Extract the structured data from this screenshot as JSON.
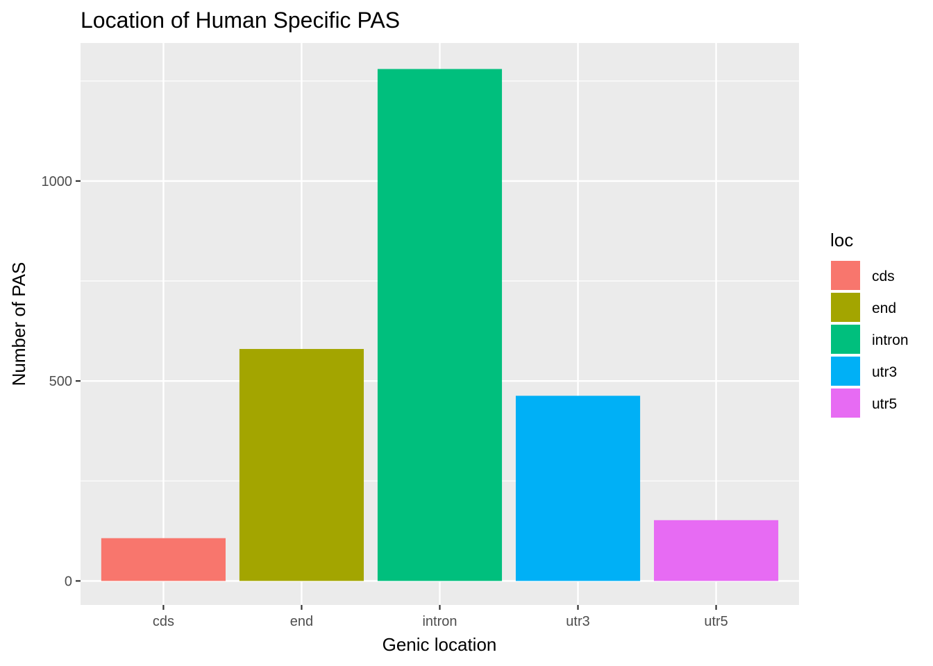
{
  "chart_data": {
    "type": "bar",
    "title": "Location of Human Specific PAS",
    "xlabel": "Genic location",
    "ylabel": "Number of PAS",
    "categories": [
      "cds",
      "end",
      "intron",
      "utr3",
      "utr5"
    ],
    "values": [
      107,
      580,
      1280,
      463,
      152
    ],
    "colors": [
      "#F8766D",
      "#A3A500",
      "#00BF7D",
      "#00B0F6",
      "#E76BF3"
    ],
    "ylim": [
      -60,
      1345
    ],
    "yticks": [
      0,
      500,
      1000
    ],
    "ytick_labels": [
      "0",
      "500",
      "1000"
    ],
    "minor_yticks": [
      250,
      750,
      1250
    ],
    "grid": true,
    "panel_background": "#EBEBEB",
    "legend": {
      "title": "loc",
      "placement": "right",
      "entries": [
        "cds",
        "end",
        "intron",
        "utr3",
        "utr5"
      ]
    }
  }
}
